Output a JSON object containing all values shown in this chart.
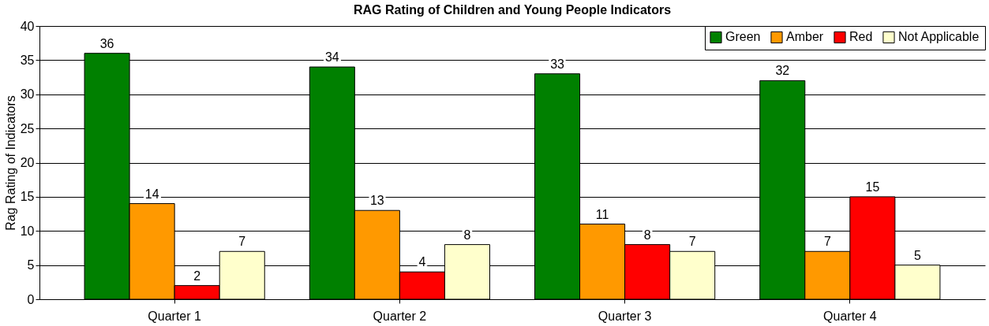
{
  "chart_data": {
    "type": "bar",
    "title": "RAG Rating of Children and Young People Indicators",
    "ylabel": "Rag Rating of Indicators",
    "categories": [
      "Quarter 1",
      "Quarter 2",
      "Quarter 3",
      "Quarter 4"
    ],
    "series": [
      {
        "name": "Green",
        "color": "#008000",
        "values": [
          36,
          34,
          33,
          32
        ]
      },
      {
        "name": "Amber",
        "color": "#ff9900",
        "values": [
          14,
          13,
          11,
          7
        ]
      },
      {
        "name": "Red",
        "color": "#ff0000",
        "values": [
          2,
          4,
          8,
          15
        ]
      },
      {
        "name": "Not Applicable",
        "color": "#ffffcc",
        "values": [
          7,
          8,
          7,
          5
        ]
      }
    ],
    "ylim": [
      0,
      40
    ],
    "yticks": [
      0,
      5,
      10,
      15,
      20,
      25,
      30,
      35,
      40
    ],
    "grid": "y",
    "legend": "top right",
    "data_labels": true
  }
}
